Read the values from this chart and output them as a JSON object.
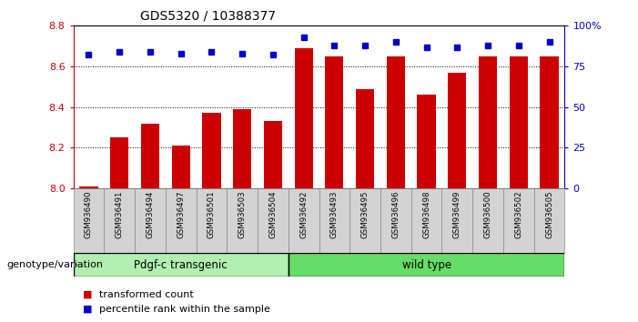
{
  "title": "GDS5320 / 10388377",
  "samples": [
    "GSM936490",
    "GSM936491",
    "GSM936494",
    "GSM936497",
    "GSM936501",
    "GSM936503",
    "GSM936504",
    "GSM936492",
    "GSM936493",
    "GSM936495",
    "GSM936496",
    "GSM936498",
    "GSM936499",
    "GSM936500",
    "GSM936502",
    "GSM936505"
  ],
  "red_values": [
    8.01,
    8.25,
    8.32,
    8.21,
    8.37,
    8.39,
    8.33,
    8.69,
    8.65,
    8.49,
    8.65,
    8.46,
    8.57,
    8.65,
    8.65,
    8.65
  ],
  "blue_values": [
    82,
    84,
    84,
    83,
    84,
    83,
    82,
    93,
    88,
    88,
    90,
    87,
    87,
    88,
    88,
    90
  ],
  "ylim_left": [
    8.0,
    8.8
  ],
  "ylim_right": [
    0,
    100
  ],
  "yticks_left": [
    8.0,
    8.2,
    8.4,
    8.6,
    8.8
  ],
  "yticks_right": [
    0,
    25,
    50,
    75,
    100
  ],
  "ytick_labels_right": [
    "0",
    "25",
    "50",
    "75",
    "100%"
  ],
  "group1_label": "Pdgf-c transgenic",
  "group2_label": "wild type",
  "group1_count": 7,
  "bar_color": "#cc0000",
  "dot_color": "#0000cc",
  "bg_color": "#ffffff",
  "grid_color": "#000000",
  "bar_width": 0.6,
  "base_value": 8.0,
  "legend_red": "transformed count",
  "legend_blue": "percentile rank within the sample",
  "xlabel_left": "genotype/variation",
  "group1_color": "#b2f0b2",
  "group2_color": "#66dd66",
  "xtick_bg": "#d3d3d3"
}
